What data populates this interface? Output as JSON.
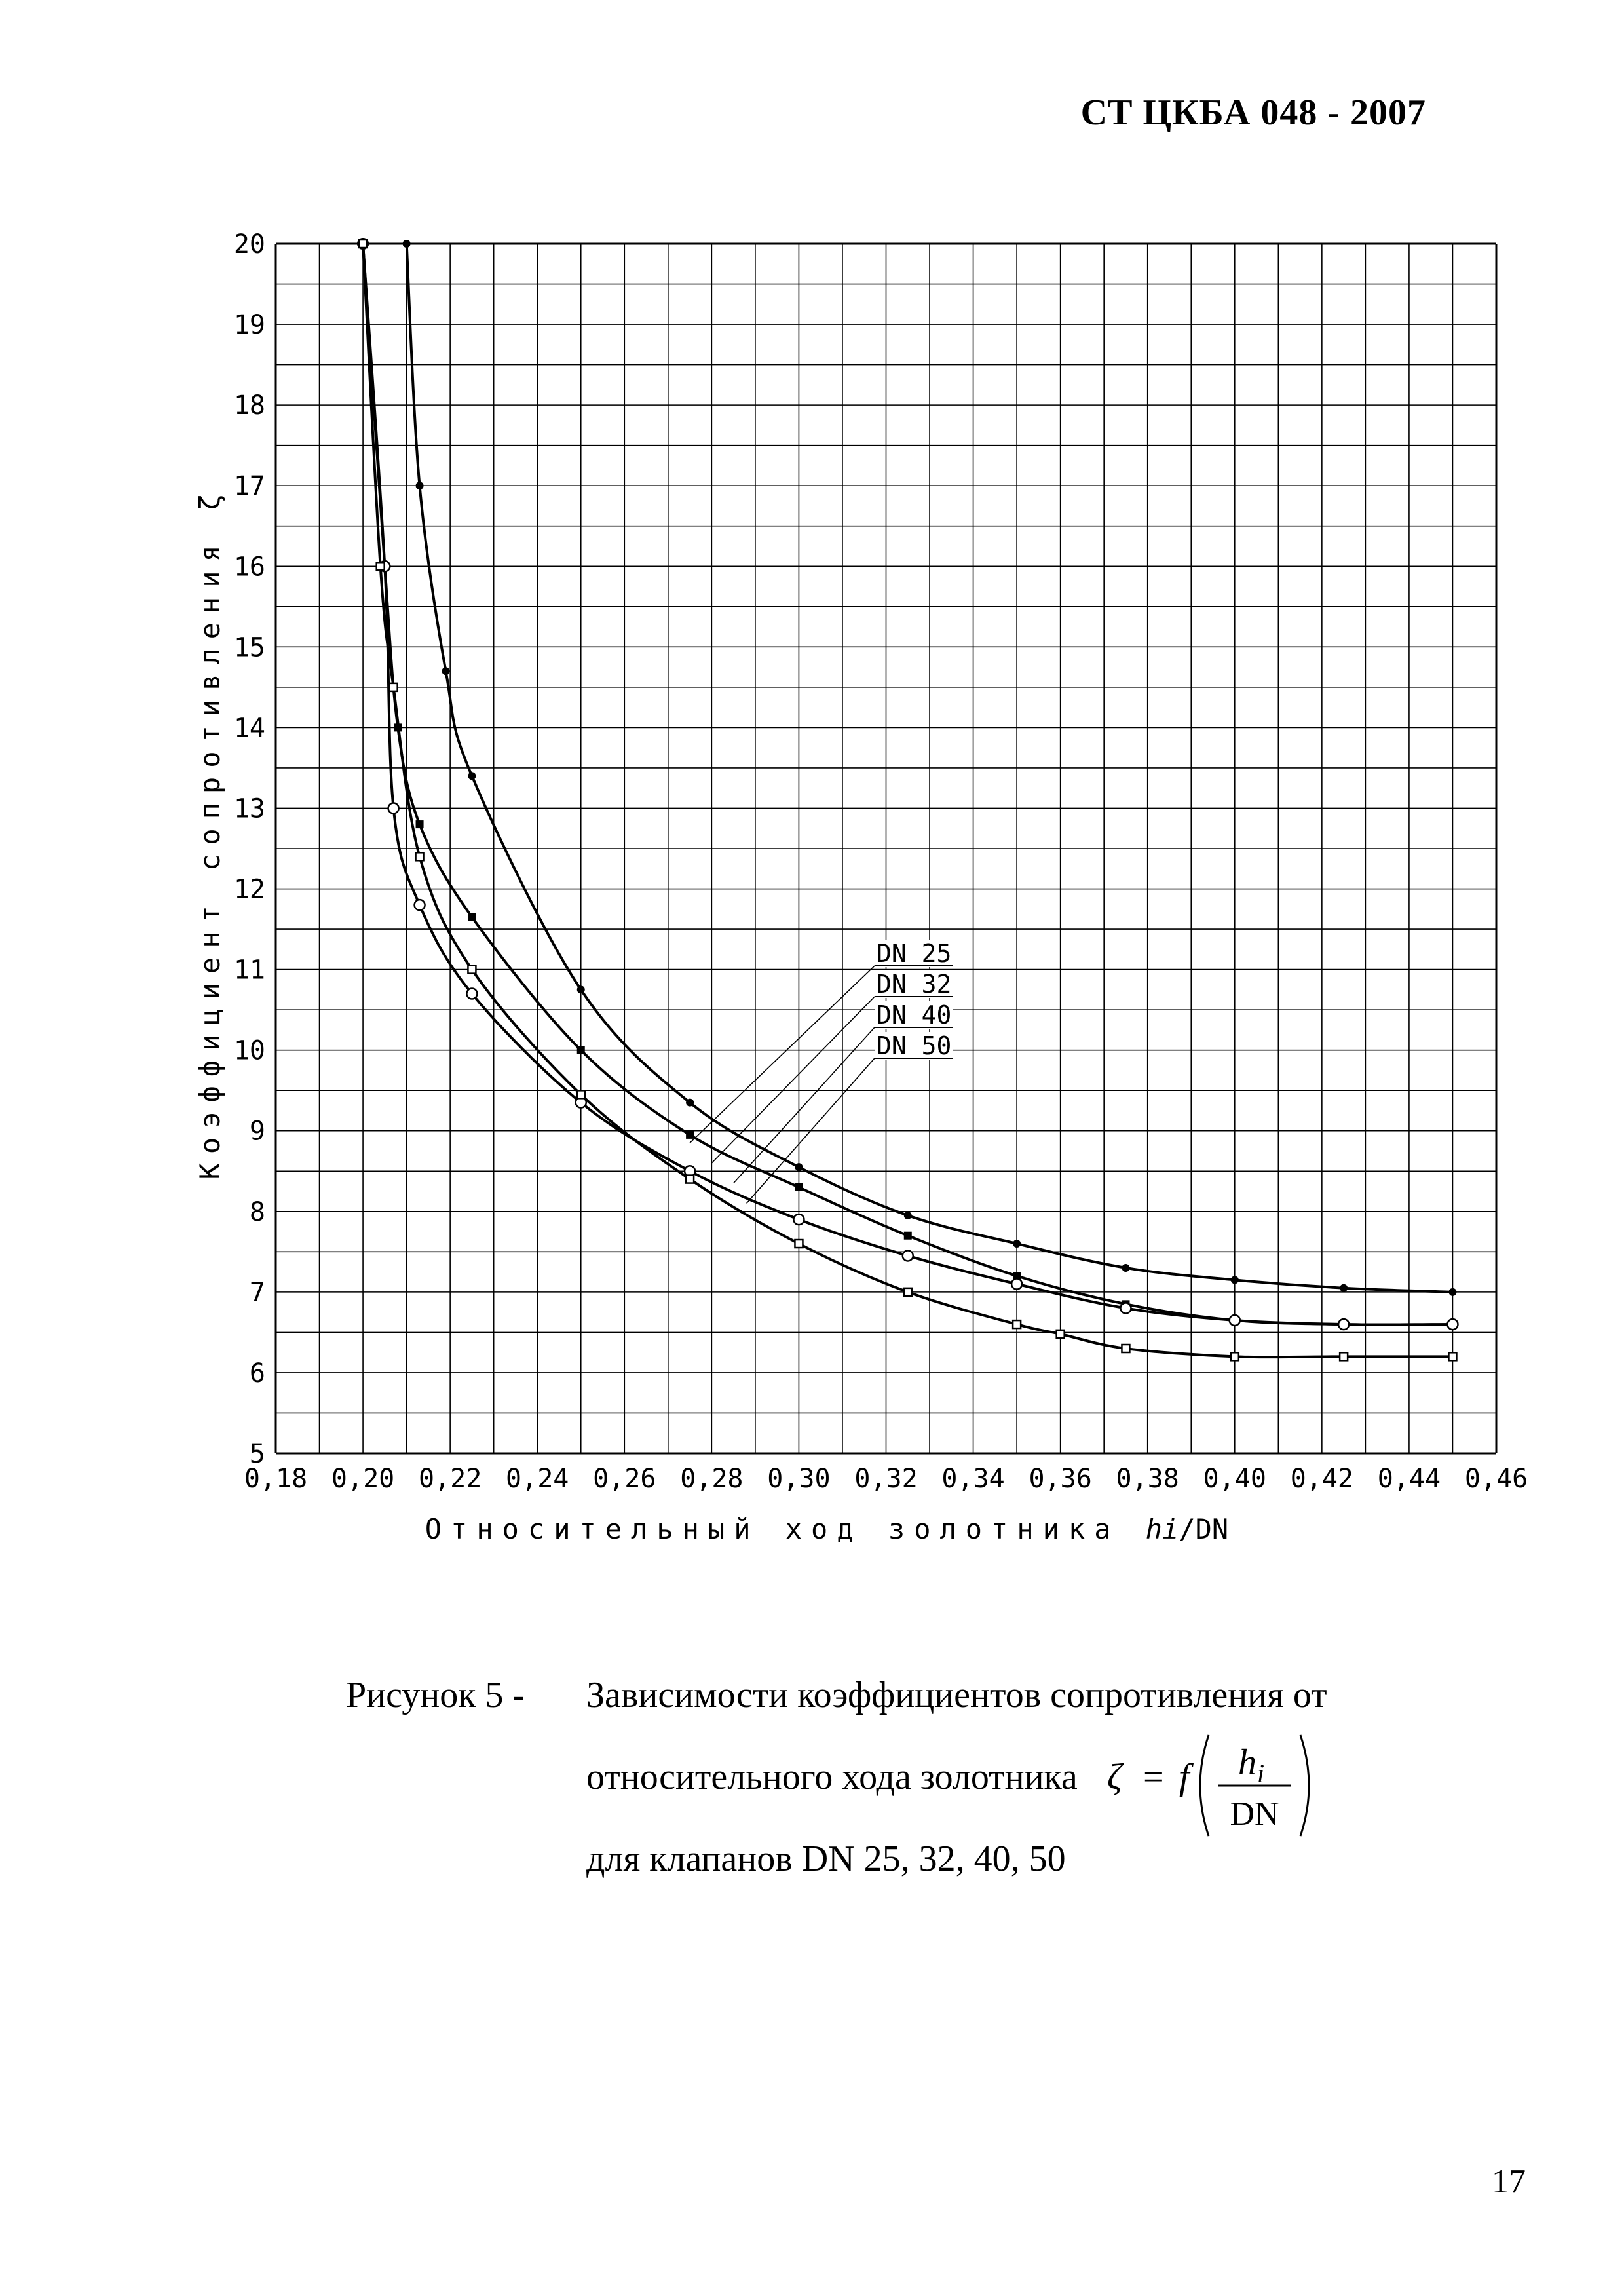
{
  "header": {
    "doc_code": "СТ  ЦКБА 048 - 2007"
  },
  "chart_data": {
    "type": "line",
    "xlabel_text": "Относительный ход золотника ",
    "xlabel_var": "hi",
    "xlabel_tail": "/DN",
    "ylabel": "Коэффициент сопротивления ζ",
    "xlim": [
      0.18,
      0.46
    ],
    "ylim": [
      5,
      20
    ],
    "x_ticks": [
      0.18,
      0.2,
      0.22,
      0.24,
      0.26,
      0.28,
      0.3,
      0.32,
      0.34,
      0.36,
      0.38,
      0.4,
      0.42,
      0.44,
      0.46
    ],
    "x_tick_labels": [
      "0,18",
      "0,20",
      "0,22",
      "0,24",
      "0,26",
      "0,28",
      "0,30",
      "0,32",
      "0,34",
      "0,36",
      "0,38",
      "0,40",
      "0,42",
      "0,44",
      "0,46"
    ],
    "y_ticks": [
      5,
      6,
      7,
      8,
      9,
      10,
      11,
      12,
      13,
      14,
      15,
      16,
      17,
      18,
      19,
      20
    ],
    "y_tick_labels": [
      "5",
      "6",
      "7",
      "8",
      "9",
      "10",
      "11",
      "12",
      "13",
      "14",
      "15",
      "16",
      "17",
      "18",
      "19",
      "20"
    ],
    "x_minor_step": 0.01,
    "y_minor_step": 0.5,
    "grid": true,
    "legend": [
      "DN 25",
      "DN 32",
      "DN 40",
      "DN 50"
    ],
    "series": [
      {
        "name": "DN 25",
        "marker": "filled-small",
        "x": [
          0.21,
          0.213,
          0.219,
          0.225,
          0.25,
          0.275,
          0.3,
          0.325,
          0.35,
          0.375,
          0.4,
          0.425,
          0.45
        ],
        "y": [
          20.0,
          17.0,
          14.7,
          13.4,
          10.75,
          9.35,
          8.55,
          7.95,
          7.6,
          7.3,
          7.15,
          7.05,
          7.0
        ]
      },
      {
        "name": "DN 32",
        "marker": "filled-square",
        "x": [
          0.2,
          0.205,
          0.208,
          0.213,
          0.225,
          0.25,
          0.275,
          0.3,
          0.325,
          0.35,
          0.375,
          0.4,
          0.425,
          0.45
        ],
        "y": [
          20.0,
          16.0,
          14.0,
          12.8,
          11.65,
          10.0,
          8.95,
          8.3,
          7.7,
          7.2,
          6.85,
          6.65,
          6.6,
          6.6
        ]
      },
      {
        "name": "DN 40",
        "marker": "open-circle",
        "x": [
          0.2,
          0.205,
          0.207,
          0.213,
          0.225,
          0.25,
          0.275,
          0.3,
          0.325,
          0.35,
          0.375,
          0.4,
          0.425,
          0.45
        ],
        "y": [
          20.0,
          16.0,
          13.0,
          11.8,
          10.7,
          9.35,
          8.5,
          7.9,
          7.45,
          7.1,
          6.8,
          6.65,
          6.6,
          6.6
        ]
      },
      {
        "name": "DN 50",
        "marker": "open-square",
        "x": [
          0.2,
          0.204,
          0.207,
          0.213,
          0.225,
          0.25,
          0.275,
          0.3,
          0.325,
          0.35,
          0.36,
          0.375,
          0.4,
          0.425,
          0.45
        ],
        "y": [
          20.0,
          16.0,
          14.5,
          12.4,
          11.0,
          9.45,
          8.4,
          7.6,
          7.0,
          6.6,
          6.48,
          6.3,
          6.2,
          6.2,
          6.2
        ]
      }
    ]
  },
  "caption": {
    "label": "Рисунок 5 -",
    "line1": "Зависимости коэффициентов сопротивления от",
    "line2": "относительного хода золотника",
    "formula_lhs": "ζ",
    "formula_eq": "=",
    "formula_f": "f",
    "formula_num": "h",
    "formula_sub": "i",
    "formula_den": "DN",
    "line3": "для клапанов DN 25, 32, 40, 50"
  },
  "page": {
    "number": "17"
  }
}
